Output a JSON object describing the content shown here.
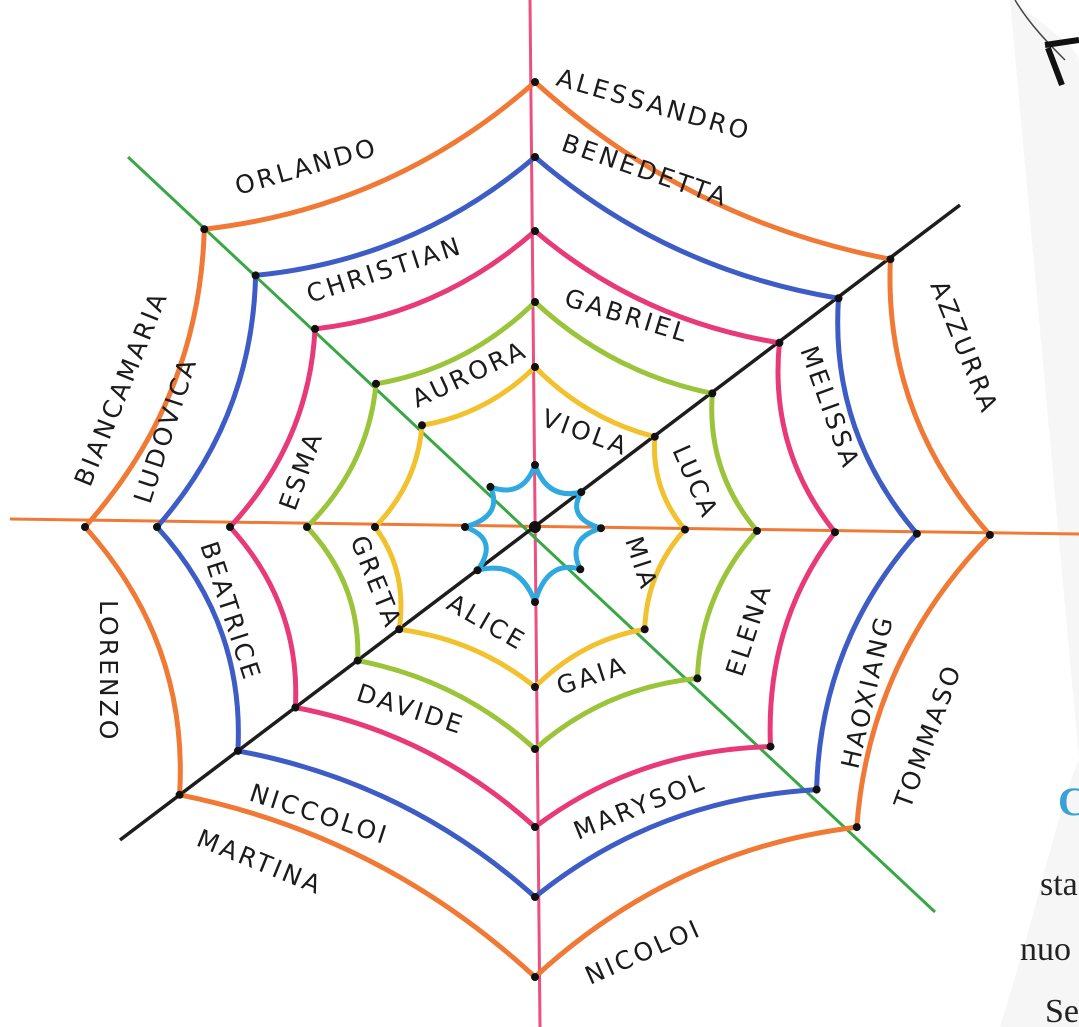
{
  "web": {
    "colors": {
      "vertical_axis": "#ec4f80",
      "horizontal_axis": "#f07a35",
      "diagonal_green": "#38a845",
      "diagonal_black": "#1d1d1d",
      "rings": [
        "#2fa9df",
        "#f2c12e",
        "#9cc43a",
        "#e83a78",
        "#3e5cc5",
        "#f07a35"
      ]
    },
    "names": [
      "ALESSANDRO",
      "BENEDETTA",
      "ORLANDO",
      "CHRISTIAN",
      "GABRIEL",
      "AZZURRA",
      "MELISSA",
      "AURORA",
      "VIOLA",
      "LUCA",
      "ESMA",
      "BIANCAMARIA",
      "LUDOVICA",
      "BEATRICE",
      "GRETA",
      "MIA",
      "ALICE",
      "GAIA",
      "ELENA",
      "LORENZO",
      "HAOXIANG",
      "TOMMASO",
      "DAVIDE",
      "MARYSOL",
      "NICCOLOI",
      "MARTINA",
      "NICOLOI"
    ]
  },
  "page_fragments": {
    "heading_letter": "C",
    "line1": "sta",
    "line2": "nuo",
    "line3": "Se"
  }
}
